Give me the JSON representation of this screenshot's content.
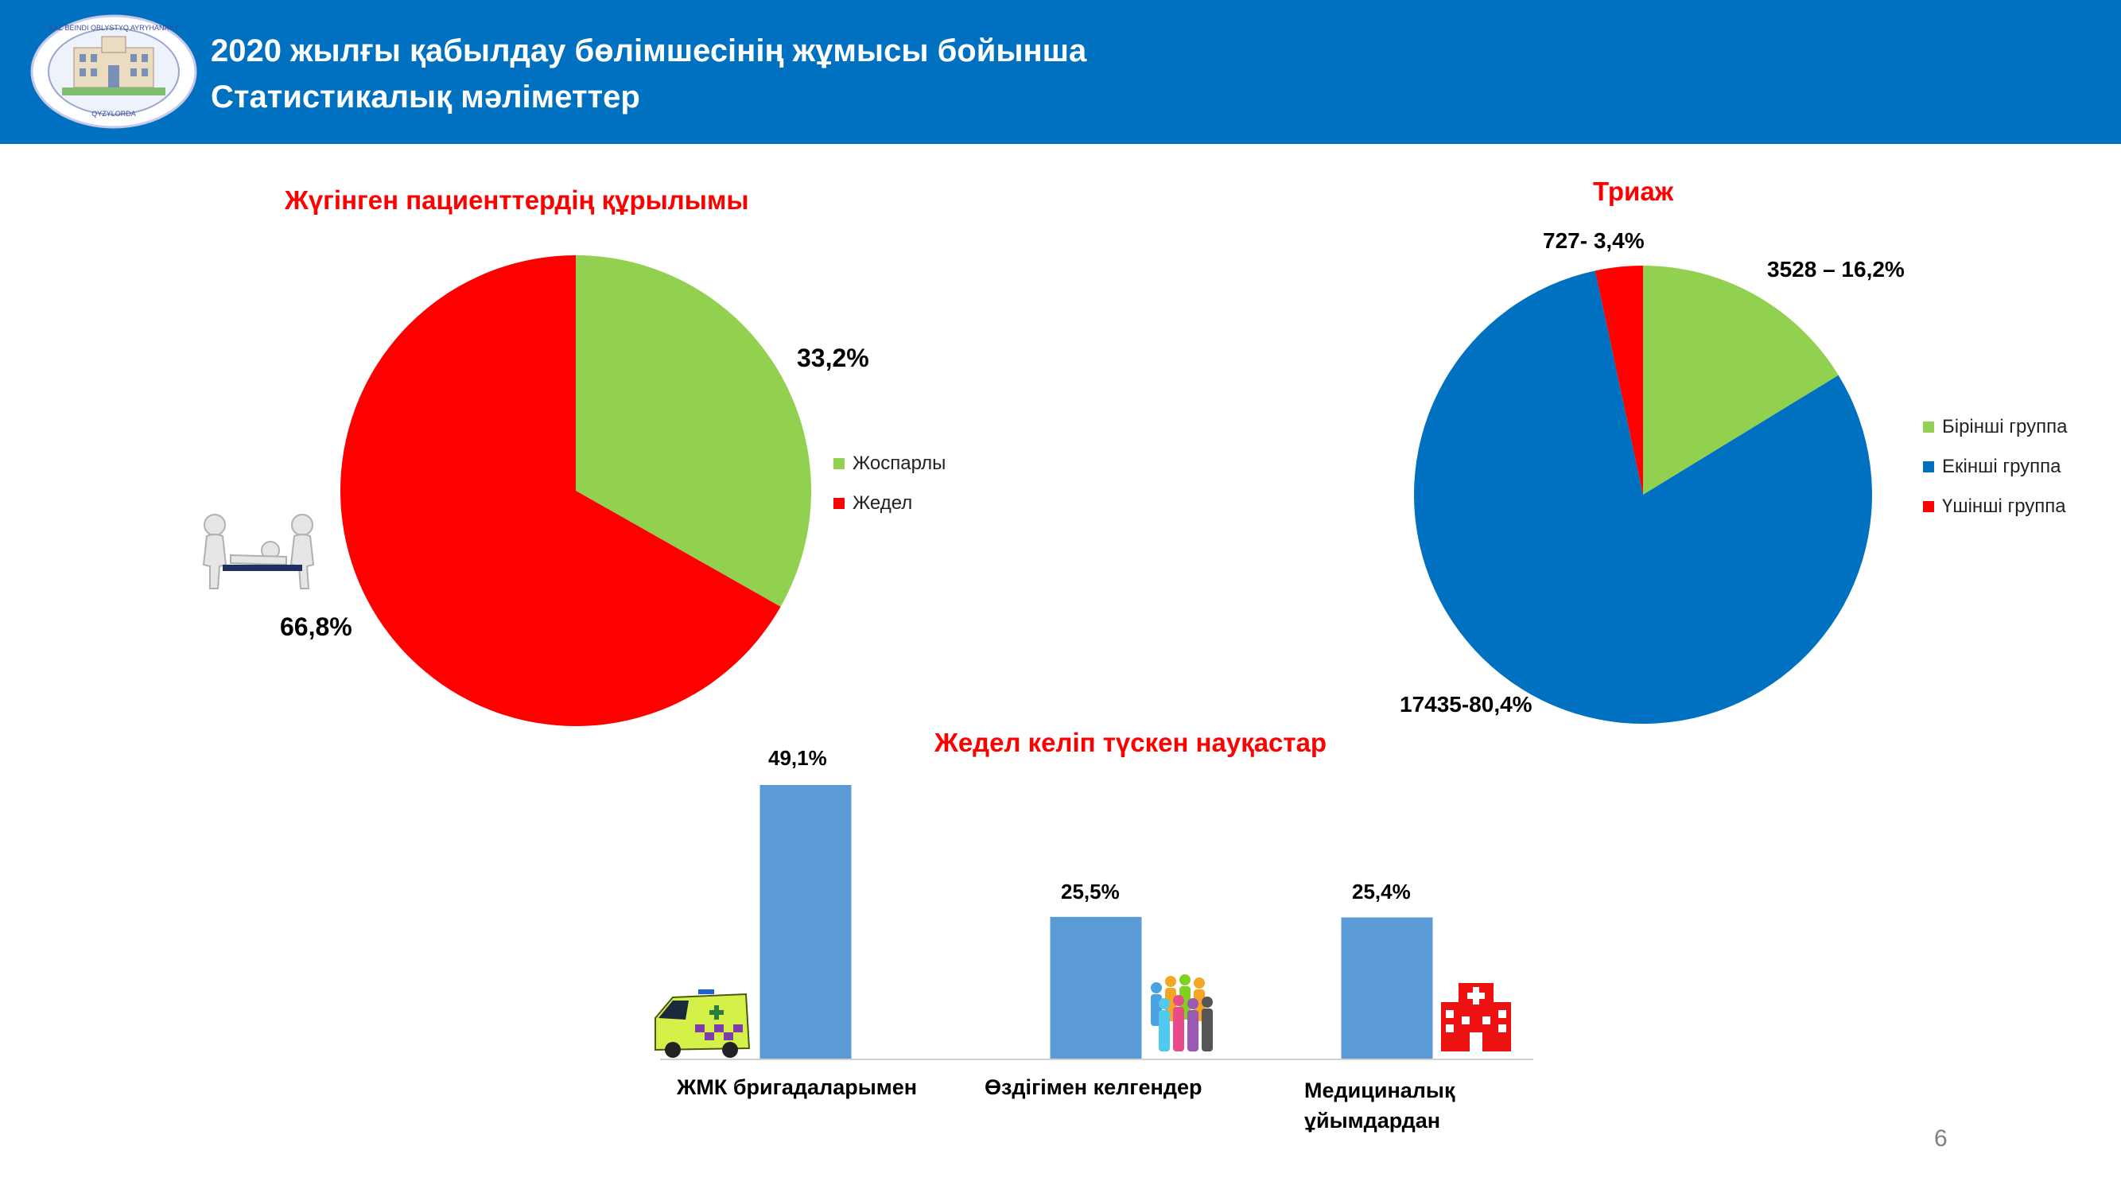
{
  "header": {
    "title_line1": "2020 жылғы қабылдау бөлімшесінің жұмысы бойынша",
    "title_line2": "Статистикалық  мәліметтер",
    "logo_text_top": "KAZ BEINDI OBLYSTYQ AYRYHANASY",
    "logo_text_bottom": "QYZYLORDA",
    "colors": {
      "bar": "#0070c0"
    }
  },
  "chart_data": [
    {
      "type": "pie",
      "title": "Жүгінген пациенттердің құрылымы",
      "categories": [
        "Жоспарлы",
        "Жедел"
      ],
      "values": [
        33.2,
        66.8
      ],
      "labels": [
        "33,2%",
        "66,8%"
      ],
      "colors": [
        "#92d050",
        "#ff0000"
      ],
      "legend": "right"
    },
    {
      "type": "pie",
      "title": "Триаж",
      "categories": [
        "Бірінші группа",
        "Екінші группа",
        "Үшінші группа"
      ],
      "values": [
        3528,
        17435,
        727
      ],
      "percent": [
        16.2,
        80.4,
        3.4
      ],
      "labels": [
        "3528 – 16,2%",
        "17435-80,4%",
        "727- 3,4%"
      ],
      "colors": [
        "#92d050",
        "#0070c0",
        "#ff0000"
      ],
      "legend": "right"
    },
    {
      "type": "bar",
      "title": "Жедел келіп түскен науқастар",
      "categories": [
        "ЖМК бригадаларымен",
        "Өздігімен келгендер",
        "Медициналық ұйымдардан"
      ],
      "values": [
        49.1,
        25.5,
        25.4
      ],
      "labels": [
        "49,1%",
        "25,5%",
        "25,4%"
      ],
      "color": "#5b9bd5"
    }
  ],
  "page_number": "6"
}
